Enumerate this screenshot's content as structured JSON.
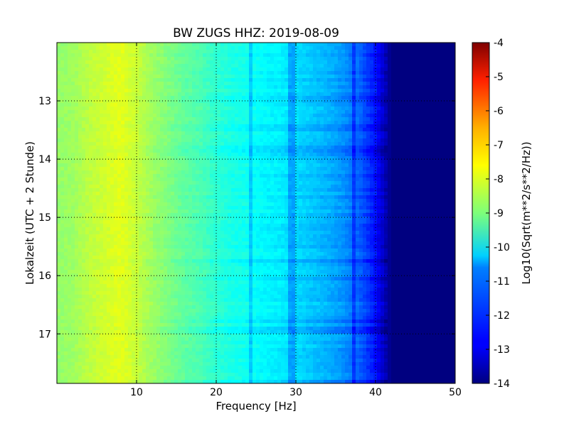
{
  "chart_data": {
    "type": "heatmap",
    "title": "BW ZUGS HHZ: 2019-08-09",
    "xlabel": "Frequency [Hz]",
    "ylabel": "Lokalzeit (UTC + 2 Stunde)",
    "xlim": [
      0,
      50
    ],
    "ylim": [
      17.85,
      12.0
    ],
    "x_ticks": [
      "10",
      "20",
      "30",
      "40",
      "50"
    ],
    "x_tick_values": [
      10,
      20,
      30,
      40,
      50
    ],
    "y_ticks": [
      "13",
      "14",
      "15",
      "16",
      "17"
    ],
    "y_tick_values": [
      13,
      14,
      15,
      16,
      17
    ],
    "grid": true,
    "colormap": "jet",
    "colorbar": {
      "label": "Log10(Sqrt(m**2/s**2/Hz))",
      "vmin": -14,
      "vmax": -4,
      "ticks": [
        "-4",
        "-5",
        "-6",
        "-7",
        "-8",
        "-9",
        "-10",
        "-11",
        "-12",
        "-13",
        "-14"
      ],
      "tick_values": [
        -4,
        -5,
        -6,
        -7,
        -8,
        -9,
        -10,
        -11,
        -12,
        -13,
        -14
      ]
    },
    "frequency_bins_hz": [
      0,
      2,
      4,
      6,
      8,
      10,
      12,
      14,
      16,
      18,
      20,
      22,
      24,
      26,
      28,
      30,
      32,
      34,
      36,
      38,
      40,
      42,
      44,
      46,
      48,
      50
    ],
    "mean_level_log10": [
      -8.8,
      -8.7,
      -8.4,
      -8.2,
      -8.0,
      -8.3,
      -8.7,
      -9.0,
      -9.3,
      -9.5,
      -9.8,
      -10.0,
      -10.1,
      -10.3,
      -10.4,
      -10.6,
      -10.8,
      -11.0,
      -11.3,
      -11.8,
      -12.6,
      -14.0,
      -14.0,
      -14.0,
      -14.0,
      -14.0
    ],
    "narrowband_lines_hz": [
      24.5,
      29.5,
      37.3
    ]
  }
}
